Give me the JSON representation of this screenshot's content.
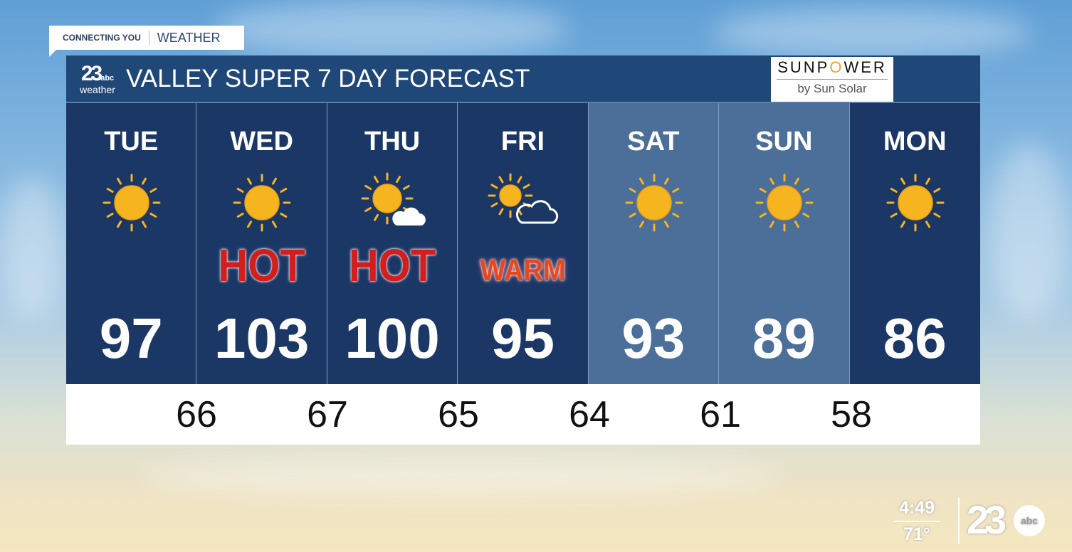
{
  "tag": {
    "left": "CONNECTING YOU",
    "right": "WEATHER"
  },
  "header": {
    "logo_number": "23",
    "logo_network": "abc",
    "logo_word": "weather",
    "title": "VALLEY SUPER 7 DAY FORECAST"
  },
  "sponsor": {
    "brand_pre": "SUNP",
    "brand_o": "O",
    "brand_post": "WER",
    "byline": "by Sun Solar"
  },
  "days": [
    {
      "name": "TUE",
      "icon": "sun-icon",
      "badge": "",
      "high": "97",
      "shade": "dark"
    },
    {
      "name": "WED",
      "icon": "sun-icon",
      "badge": "HOT",
      "high": "103",
      "shade": "dark"
    },
    {
      "name": "THU",
      "icon": "mostly-sunny-icon",
      "badge": "HOT",
      "high": "100",
      "shade": "dark"
    },
    {
      "name": "FRI",
      "icon": "partly-cloudy-icon",
      "badge": "WARM",
      "high": "95",
      "shade": "dark"
    },
    {
      "name": "SAT",
      "icon": "sun-icon",
      "badge": "",
      "high": "93",
      "shade": "light"
    },
    {
      "name": "SUN",
      "icon": "sun-icon",
      "badge": "",
      "high": "89",
      "shade": "light"
    },
    {
      "name": "MON",
      "icon": "sun-icon",
      "badge": "",
      "high": "86",
      "shade": "dark"
    }
  ],
  "lows": [
    "66",
    "67",
    "65",
    "64",
    "61",
    "58"
  ],
  "colors": {
    "panel": "#1b3766",
    "panel_light": "#4b6f98",
    "header": "#1f4778",
    "hot": "#d41e1e",
    "sun": "#f6b51f"
  },
  "corner": {
    "time": "4:49",
    "temp": "71°",
    "station": "23",
    "network": "abc"
  }
}
